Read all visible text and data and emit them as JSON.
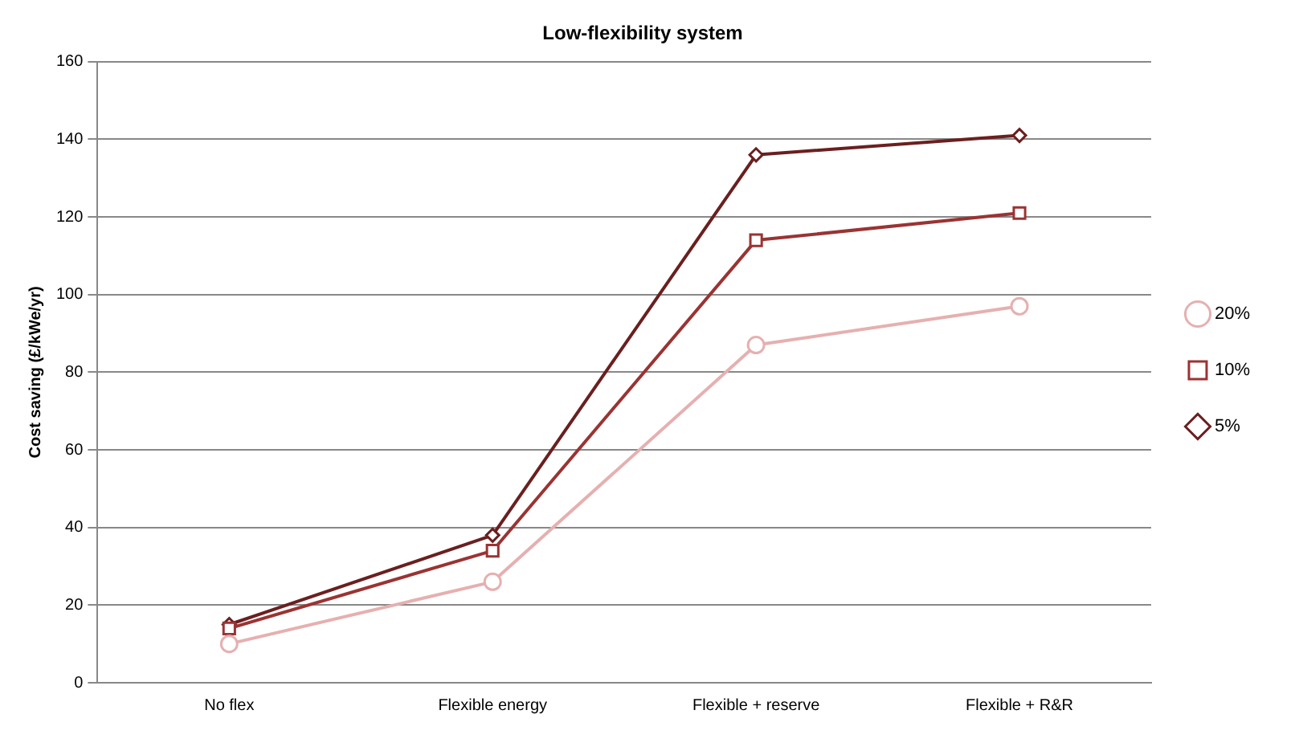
{
  "chart_data": {
    "type": "line",
    "title": "Low-flexibility system",
    "ylabel": "Cost saving (£/kWe/yr)",
    "categories": [
      "No flex",
      "Flexible energy",
      "Flexible + reserve",
      "Flexible + R&R"
    ],
    "series": [
      {
        "name": "5%",
        "color": "#6b1f1f",
        "marker": "diamond",
        "values": [
          15,
          38,
          136,
          141
        ]
      },
      {
        "name": "10%",
        "color": "#9b3333",
        "marker": "square",
        "values": [
          14,
          34,
          114,
          121
        ]
      },
      {
        "name": "20%",
        "color": "#e6b0b0",
        "marker": "circle",
        "values": [
          10,
          26,
          87,
          97
        ]
      }
    ],
    "ylim": [
      0,
      160
    ],
    "yticks": [
      0,
      20,
      40,
      60,
      80,
      100,
      120,
      140,
      160
    ],
    "grid": "y",
    "legend": "right",
    "line_style": "solid"
  }
}
